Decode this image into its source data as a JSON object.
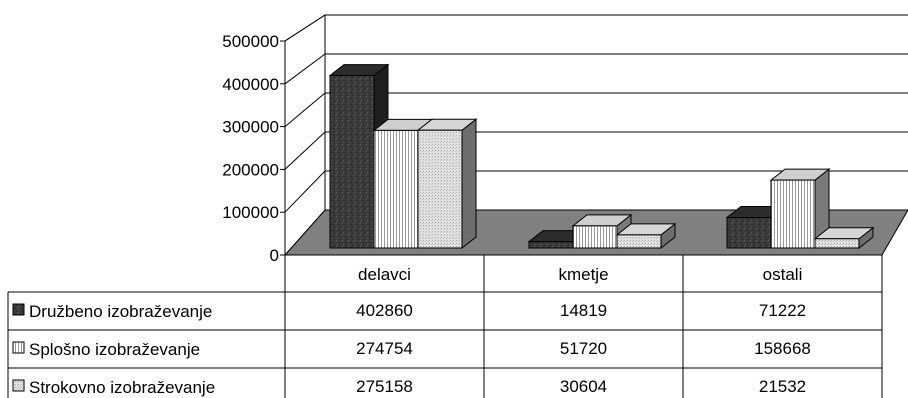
{
  "chart_data": {
    "type": "bar",
    "title": "",
    "xlabel": "",
    "ylabel": "",
    "categories": [
      "delavci",
      "kmetje",
      "ostali"
    ],
    "y_ticks": [
      "500000",
      "400000",
      "300000",
      "200000",
      "100000",
      "0"
    ],
    "ylim": [
      0,
      500000
    ],
    "grid": true,
    "three_d": true,
    "legend_placement": "data table, left of rows",
    "series": [
      {
        "name": "Družbeno izobraževanje",
        "values": [
          402860,
          14819,
          71222
        ],
        "pattern": "dark-speckled"
      },
      {
        "name": "Splošno izobraževanje",
        "values": [
          274754,
          51720,
          158668
        ],
        "pattern": "vertical-lines"
      },
      {
        "name": "Strokovno izobraževanje",
        "values": [
          275158,
          30604,
          21532
        ],
        "pattern": "light-dotted"
      }
    ],
    "table": {
      "rows": [
        [
          "402860",
          "14819",
          "71222"
        ],
        [
          "274754",
          "51720",
          "158668"
        ],
        [
          "275158",
          "30604",
          "21532"
        ]
      ]
    }
  }
}
